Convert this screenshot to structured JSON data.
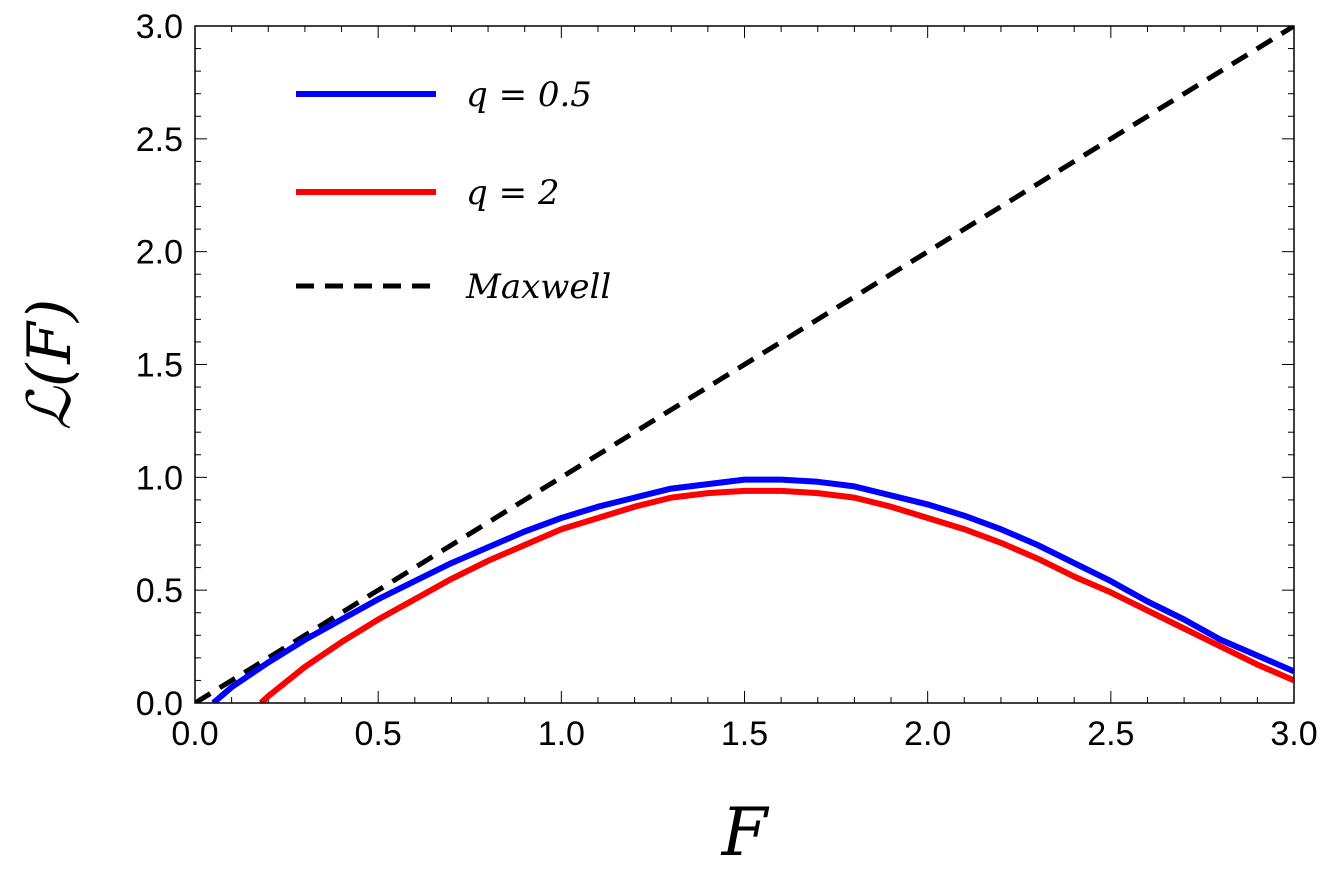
{
  "chart_data": {
    "type": "line",
    "xlabel": "F",
    "ylabel": "ℒ(F)",
    "xlim": [
      0,
      3
    ],
    "ylim": [
      0,
      3
    ],
    "x_ticks": [
      "0.0",
      "0.5",
      "1.0",
      "1.5",
      "2.0",
      "2.5",
      "3.0"
    ],
    "y_ticks": [
      "0.0",
      "0.5",
      "1.0",
      "1.5",
      "2.0",
      "2.5",
      "3.0"
    ],
    "grid": false,
    "legend_position": "top-left",
    "series": [
      {
        "name": "q = 0.5",
        "color": "#0000ff",
        "style": "solid",
        "x": [
          0.05,
          0.1,
          0.2,
          0.3,
          0.4,
          0.5,
          0.6,
          0.7,
          0.8,
          0.9,
          1.0,
          1.1,
          1.2,
          1.3,
          1.4,
          1.5,
          1.57,
          1.6,
          1.7,
          1.8,
          1.9,
          2.0,
          2.1,
          2.2,
          2.3,
          2.4,
          2.5,
          2.6,
          2.7,
          2.8,
          2.9,
          3.0
        ],
        "y": [
          0.0,
          0.07,
          0.18,
          0.28,
          0.37,
          0.46,
          0.54,
          0.62,
          0.69,
          0.76,
          0.82,
          0.87,
          0.91,
          0.95,
          0.97,
          0.99,
          0.99,
          0.99,
          0.98,
          0.96,
          0.92,
          0.88,
          0.83,
          0.77,
          0.7,
          0.62,
          0.54,
          0.45,
          0.37,
          0.28,
          0.21,
          0.14
        ]
      },
      {
        "name": "q = 2",
        "color": "#ff0000",
        "style": "solid",
        "x": [
          0.18,
          0.2,
          0.3,
          0.4,
          0.5,
          0.6,
          0.7,
          0.8,
          0.9,
          1.0,
          1.1,
          1.2,
          1.3,
          1.4,
          1.5,
          1.6,
          1.7,
          1.8,
          1.9,
          2.0,
          2.1,
          2.2,
          2.3,
          2.4,
          2.5,
          2.6,
          2.7,
          2.8,
          2.9,
          3.0
        ],
        "y": [
          0.0,
          0.03,
          0.16,
          0.27,
          0.37,
          0.46,
          0.55,
          0.63,
          0.7,
          0.77,
          0.82,
          0.87,
          0.91,
          0.93,
          0.94,
          0.94,
          0.93,
          0.91,
          0.87,
          0.82,
          0.77,
          0.71,
          0.64,
          0.56,
          0.49,
          0.41,
          0.33,
          0.25,
          0.17,
          0.1
        ]
      },
      {
        "name": "Maxwell",
        "color": "#000000",
        "style": "dashed",
        "x": [
          0.0,
          3.0
        ],
        "y": [
          0.0,
          3.0
        ]
      }
    ]
  }
}
